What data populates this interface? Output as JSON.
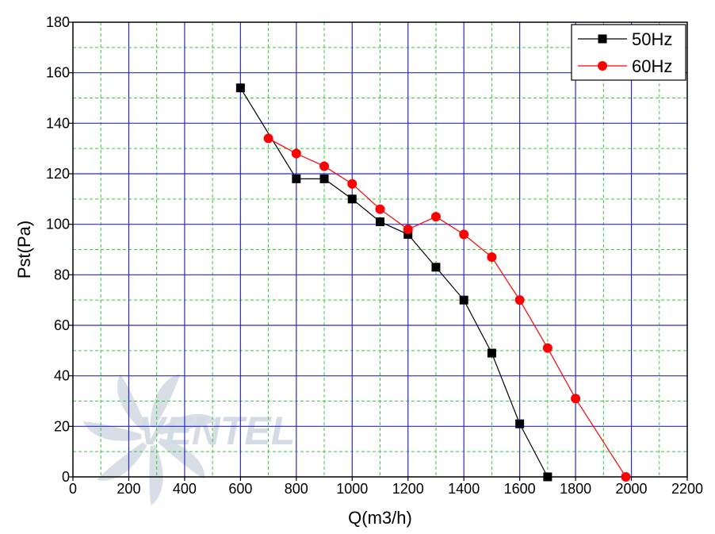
{
  "chart_data": {
    "type": "line",
    "xlabel": "Q(m3/h)",
    "ylabel": "Pst(Pa)",
    "xlim": [
      0,
      2200
    ],
    "ylim": [
      0,
      180
    ],
    "x_major": 200,
    "y_major": 20,
    "grid": true,
    "legend_position": "top-right",
    "series": [
      {
        "name": "50Hz",
        "color": "#000000",
        "marker": "square",
        "x": [
          600,
          800,
          900,
          1000,
          1100,
          1200,
          1300,
          1400,
          1500,
          1600,
          1700
        ],
        "y": [
          154,
          118,
          118,
          110,
          101,
          96,
          83,
          70,
          49,
          21,
          0
        ]
      },
      {
        "name": "60Hz",
        "color": "#ff0000",
        "marker": "circle",
        "x": [
          700,
          800,
          900,
          1000,
          1100,
          1200,
          1300,
          1400,
          1500,
          1600,
          1700,
          1800,
          1980
        ],
        "y": [
          134,
          128,
          123,
          116,
          106,
          98,
          103,
          96,
          87,
          70,
          51,
          31,
          0
        ]
      }
    ]
  },
  "colors": {
    "major_grid": "#2a2acc",
    "minor_grid": "#33cc33",
    "watermark": "#d3dbe4"
  },
  "watermark": {
    "text": "VENTEL",
    "icon": "fan-logo-icon"
  }
}
